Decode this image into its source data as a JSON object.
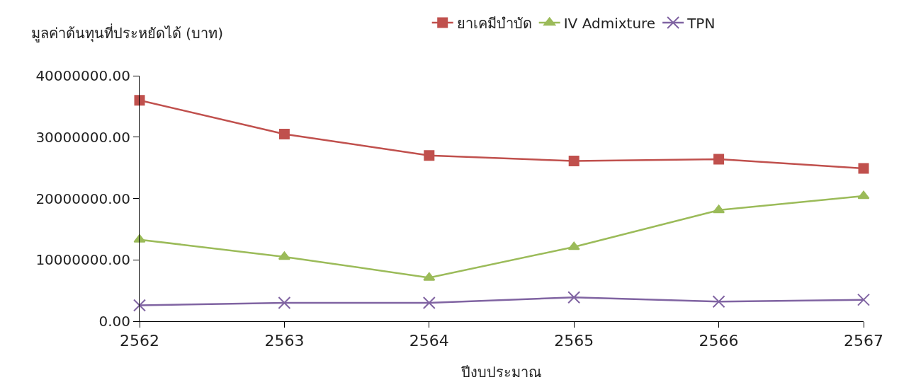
{
  "chart_data": {
    "type": "line",
    "ylabel": "มูลค่าต้นทุนที่ประหยัดได้ (บาท)",
    "xlabel": "ปีงบประมาณ",
    "categories": [
      "2562",
      "2563",
      "2564",
      "2565",
      "2566",
      "2567"
    ],
    "series": [
      {
        "name": "ยาเคมีบำบัด",
        "color": "#c0504d",
        "marker": "square",
        "values": [
          36000000,
          30500000,
          27000000,
          26100000,
          26400000,
          24900000
        ]
      },
      {
        "name": "IV Admixture",
        "color": "#9bbb59",
        "marker": "triangle",
        "values": [
          13300000,
          10500000,
          7100000,
          12100000,
          18100000,
          20400000
        ]
      },
      {
        "name": "TPN",
        "color": "#8064a2",
        "marker": "cross",
        "values": [
          2600000,
          3000000,
          3000000,
          3900000,
          3200000,
          3500000
        ]
      }
    ],
    "ylim": [
      0,
      40000000
    ],
    "yticks": [
      {
        "value": 0,
        "label": "0.00"
      },
      {
        "value": 10000000,
        "label": "10000000.00"
      },
      {
        "value": 20000000,
        "label": "20000000.00"
      },
      {
        "value": 30000000,
        "label": "30000000.00"
      },
      {
        "value": 40000000,
        "label": "40000000.00"
      }
    ],
    "legend": "top",
    "line_style": "solid"
  }
}
